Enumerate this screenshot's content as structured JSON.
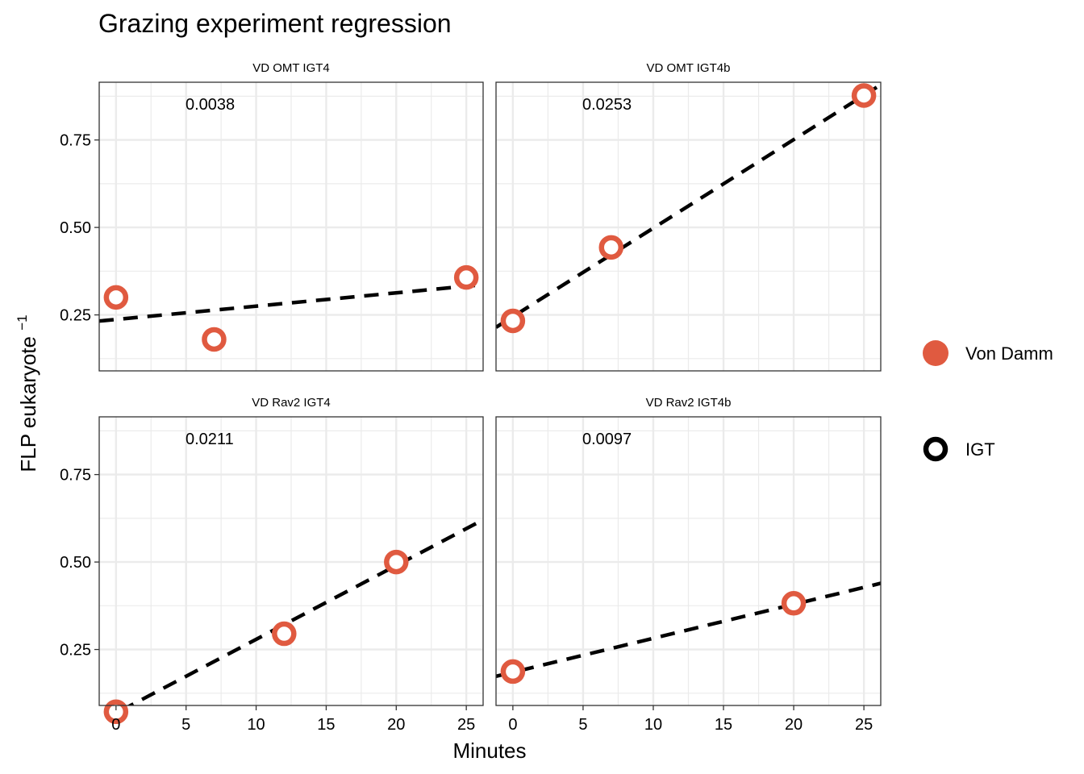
{
  "chart_data": {
    "type": "scatter",
    "title": "Grazing experiment regression",
    "xlabel": "Minutes",
    "ylabel": "FLP eukaryote",
    "ylabel_superscript": "−1",
    "xlim": [
      -1.2,
      26.2
    ],
    "ylim": [
      0.09,
      0.915
    ],
    "x_ticks": [
      0,
      5,
      10,
      15,
      20,
      25
    ],
    "x_tick_labels": [
      "0",
      "5",
      "10",
      "15",
      "20",
      "25"
    ],
    "y_ticks": [
      0.25,
      0.5,
      0.75
    ],
    "y_tick_labels": [
      "0.25",
      "0.50",
      "0.75"
    ],
    "grid": true,
    "legend_position": "right",
    "legend": [
      {
        "label": "Von Damm",
        "marker": "filled-circle",
        "color": "#E05A40"
      },
      {
        "label": "IGT",
        "marker": "open-circle",
        "color": "#000000"
      }
    ],
    "colors": {
      "point_stroke": "#E05A40",
      "point_fill": "#FFFFFF",
      "line": "#000000",
      "grid": "#EBEBEB"
    },
    "panels": [
      {
        "title": "VD OMT IGT4",
        "slope_label": "0.0038",
        "points": [
          {
            "x": 0,
            "y": 0.3
          },
          {
            "x": 7,
            "y": 0.18
          },
          {
            "x": 25,
            "y": 0.357
          }
        ],
        "fit": {
          "slope": 0.0038,
          "intercept": 0.237
        }
      },
      {
        "title": "VD OMT IGT4b",
        "slope_label": "0.0253",
        "points": [
          {
            "x": 0,
            "y": 0.233
          },
          {
            "x": 7,
            "y": 0.443
          },
          {
            "x": 25,
            "y": 0.877
          }
        ],
        "fit": {
          "slope": 0.0253,
          "intercept": 0.245
        }
      },
      {
        "title": "VD Rav2 IGT4",
        "slope_label": "0.0211",
        "points": [
          {
            "x": 0,
            "y": 0.072
          },
          {
            "x": 12,
            "y": 0.295
          },
          {
            "x": 20,
            "y": 0.5
          }
        ],
        "fit": {
          "slope": 0.0211,
          "intercept": 0.068
        }
      },
      {
        "title": "VD Rav2 IGT4b",
        "slope_label": "0.0097",
        "points": [
          {
            "x": 0,
            "y": 0.187
          },
          {
            "x": 20,
            "y": 0.382
          }
        ],
        "fit": {
          "slope": 0.0097,
          "intercept": 0.185
        }
      }
    ]
  }
}
